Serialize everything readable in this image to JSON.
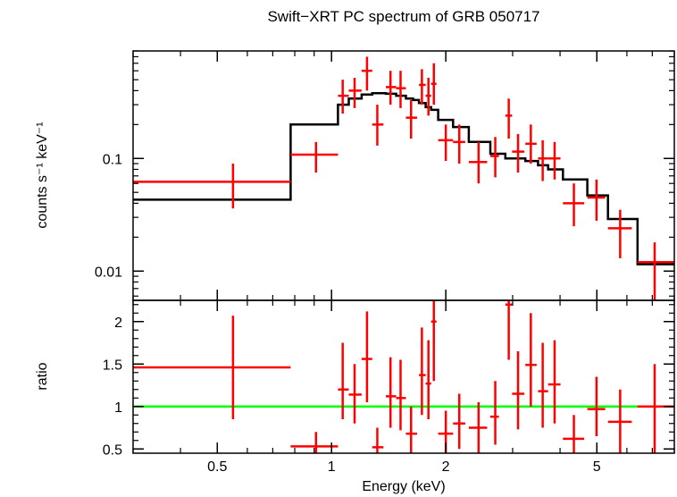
{
  "chart_data": {
    "type": "scatter",
    "title": "Swift−XRT PC spectrum of GRB 050717",
    "xlabel": "Energy (keV)",
    "x_scale": "log",
    "xlim": [
      0.3,
      8.0
    ],
    "x_ticks": [
      "0.5",
      "1",
      "2",
      "5"
    ],
    "x_tick_values": [
      0.5,
      1,
      2,
      5
    ],
    "top_panel": {
      "ylabel": "counts s⁻¹ keV⁻¹",
      "y_scale": "log",
      "ylim": [
        0.0055,
        0.9
      ],
      "y_ticks": [
        "0.1",
        "0.01"
      ],
      "y_tick_values": [
        0.1,
        0.01
      ],
      "series": [
        {
          "color": "#ff0000",
          "points": [
            {
              "x": 0.55,
              "xlo": 0.3,
              "xhi": 0.78,
              "y": 0.062,
              "ylo": 0.036,
              "yhi": 0.09
            },
            {
              "x": 0.91,
              "xlo": 0.78,
              "xhi": 1.04,
              "y": 0.108,
              "ylo": 0.075,
              "yhi": 0.14
            },
            {
              "x": 1.07,
              "xlo": 1.04,
              "xhi": 1.11,
              "y": 0.36,
              "ylo": 0.25,
              "yhi": 0.5
            },
            {
              "x": 1.15,
              "xlo": 1.11,
              "xhi": 1.2,
              "y": 0.4,
              "ylo": 0.28,
              "yhi": 0.52
            },
            {
              "x": 1.24,
              "xlo": 1.2,
              "xhi": 1.28,
              "y": 0.6,
              "ylo": 0.4,
              "yhi": 0.8
            },
            {
              "x": 1.32,
              "xlo": 1.28,
              "xhi": 1.37,
              "y": 0.2,
              "ylo": 0.13,
              "yhi": 0.3
            },
            {
              "x": 1.43,
              "xlo": 1.39,
              "xhi": 1.48,
              "y": 0.43,
              "ylo": 0.3,
              "yhi": 0.6
            },
            {
              "x": 1.52,
              "xlo": 1.48,
              "xhi": 1.57,
              "y": 0.42,
              "ylo": 0.28,
              "yhi": 0.6
            },
            {
              "x": 1.62,
              "xlo": 1.57,
              "xhi": 1.68,
              "y": 0.23,
              "ylo": 0.15,
              "yhi": 0.33
            },
            {
              "x": 1.73,
              "xlo": 1.7,
              "xhi": 1.77,
              "y": 0.45,
              "ylo": 0.3,
              "yhi": 0.62
            },
            {
              "x": 1.8,
              "xlo": 1.77,
              "xhi": 1.83,
              "y": 0.36,
              "ylo": 0.24,
              "yhi": 0.52
            },
            {
              "x": 1.86,
              "xlo": 1.83,
              "xhi": 1.89,
              "y": 0.46,
              "ylo": 0.3,
              "yhi": 0.7
            },
            {
              "x": 2.0,
              "xlo": 1.91,
              "xhi": 2.09,
              "y": 0.145,
              "ylo": 0.095,
              "yhi": 0.2
            },
            {
              "x": 2.17,
              "xlo": 2.09,
              "xhi": 2.25,
              "y": 0.14,
              "ylo": 0.09,
              "yhi": 0.2
            },
            {
              "x": 2.44,
              "xlo": 2.3,
              "xhi": 2.57,
              "y": 0.093,
              "ylo": 0.06,
              "yhi": 0.14
            },
            {
              "x": 2.7,
              "xlo": 2.62,
              "xhi": 2.76,
              "y": 0.105,
              "ylo": 0.068,
              "yhi": 0.155
            },
            {
              "x": 2.93,
              "xlo": 2.87,
              "xhi": 2.99,
              "y": 0.24,
              "ylo": 0.15,
              "yhi": 0.34
            },
            {
              "x": 3.1,
              "xlo": 2.99,
              "xhi": 3.22,
              "y": 0.115,
              "ylo": 0.075,
              "yhi": 0.165
            },
            {
              "x": 3.35,
              "xlo": 3.24,
              "xhi": 3.47,
              "y": 0.135,
              "ylo": 0.09,
              "yhi": 0.2
            },
            {
              "x": 3.6,
              "xlo": 3.5,
              "xhi": 3.72,
              "y": 0.1,
              "ylo": 0.063,
              "yhi": 0.145
            },
            {
              "x": 3.87,
              "xlo": 3.72,
              "xhi": 4.01,
              "y": 0.1,
              "ylo": 0.065,
              "yhi": 0.14
            },
            {
              "x": 4.35,
              "xlo": 4.07,
              "xhi": 4.63,
              "y": 0.04,
              "ylo": 0.025,
              "yhi": 0.06
            },
            {
              "x": 4.99,
              "xlo": 4.72,
              "xhi": 5.26,
              "y": 0.045,
              "ylo": 0.028,
              "yhi": 0.065
            },
            {
              "x": 5.76,
              "xlo": 5.35,
              "xhi": 6.18,
              "y": 0.024,
              "ylo": 0.013,
              "yhi": 0.035
            },
            {
              "x": 7.1,
              "xlo": 6.4,
              "xhi": 8.0,
              "y": 0.012,
              "ylo": 0.0055,
              "yhi": 0.018
            }
          ]
        }
      ],
      "model": {
        "color": "#000000",
        "steps": [
          {
            "xlo": 0.3,
            "xhi": 0.78,
            "y": 0.043
          },
          {
            "xlo": 0.78,
            "xhi": 1.04,
            "y": 0.2
          },
          {
            "xlo": 1.04,
            "xhi": 1.11,
            "y": 0.3
          },
          {
            "xlo": 1.11,
            "xhi": 1.2,
            "y": 0.34
          },
          {
            "xlo": 1.2,
            "xhi": 1.28,
            "y": 0.37
          },
          {
            "xlo": 1.28,
            "xhi": 1.39,
            "y": 0.38
          },
          {
            "xlo": 1.39,
            "xhi": 1.48,
            "y": 0.375
          },
          {
            "xlo": 1.48,
            "xhi": 1.57,
            "y": 0.36
          },
          {
            "xlo": 1.57,
            "xhi": 1.64,
            "y": 0.34
          },
          {
            "xlo": 1.64,
            "xhi": 1.7,
            "y": 0.33
          },
          {
            "xlo": 1.7,
            "xhi": 1.77,
            "y": 0.31
          },
          {
            "xlo": 1.77,
            "xhi": 1.83,
            "y": 0.285
          },
          {
            "xlo": 1.83,
            "xhi": 1.91,
            "y": 0.27
          },
          {
            "xlo": 1.91,
            "xhi": 2.09,
            "y": 0.22
          },
          {
            "xlo": 2.09,
            "xhi": 2.3,
            "y": 0.19
          },
          {
            "xlo": 2.3,
            "xhi": 2.62,
            "y": 0.14
          },
          {
            "xlo": 2.62,
            "xhi": 2.87,
            "y": 0.11
          },
          {
            "xlo": 2.87,
            "xhi": 3.0,
            "y": 0.1
          },
          {
            "xlo": 3.0,
            "xhi": 3.24,
            "y": 0.1
          },
          {
            "xlo": 3.24,
            "xhi": 3.5,
            "y": 0.095
          },
          {
            "xlo": 3.5,
            "xhi": 3.72,
            "y": 0.087
          },
          {
            "xlo": 3.72,
            "xhi": 4.07,
            "y": 0.08
          },
          {
            "xlo": 4.07,
            "xhi": 4.72,
            "y": 0.065
          },
          {
            "xlo": 4.72,
            "xhi": 5.35,
            "y": 0.047
          },
          {
            "xlo": 5.35,
            "xhi": 6.4,
            "y": 0.029
          },
          {
            "xlo": 6.4,
            "xhi": 8.0,
            "y": 0.0115
          }
        ]
      }
    },
    "bottom_panel": {
      "ylabel": "ratio",
      "y_scale": "linear",
      "ylim": [
        0.45,
        2.25
      ],
      "y_ticks": [
        "0.5",
        "1",
        "1.5",
        "2"
      ],
      "y_tick_values": [
        0.5,
        1,
        1.5,
        2
      ],
      "reference_line": {
        "y": 1,
        "color": "#00ff00"
      },
      "series": [
        {
          "color": "#ff0000",
          "points": [
            {
              "x": 0.55,
              "xlo": 0.3,
              "xhi": 0.78,
              "y": 1.46,
              "ylo": 0.85,
              "yhi": 2.07
            },
            {
              "x": 0.91,
              "xlo": 0.78,
              "xhi": 1.04,
              "y": 0.53,
              "ylo": 0.45,
              "yhi": 0.7
            },
            {
              "x": 1.07,
              "xlo": 1.04,
              "xhi": 1.11,
              "y": 1.2,
              "ylo": 0.85,
              "yhi": 1.75
            },
            {
              "x": 1.15,
              "xlo": 1.11,
              "xhi": 1.2,
              "y": 1.14,
              "ylo": 0.8,
              "yhi": 1.5
            },
            {
              "x": 1.24,
              "xlo": 1.2,
              "xhi": 1.28,
              "y": 1.56,
              "ylo": 1.05,
              "yhi": 2.12
            },
            {
              "x": 1.32,
              "xlo": 1.28,
              "xhi": 1.37,
              "y": 0.52,
              "ylo": 0.45,
              "yhi": 0.75
            },
            {
              "x": 1.43,
              "xlo": 1.39,
              "xhi": 1.48,
              "y": 1.12,
              "ylo": 0.75,
              "yhi": 1.58
            },
            {
              "x": 1.52,
              "xlo": 1.48,
              "xhi": 1.57,
              "y": 1.1,
              "ylo": 0.72,
              "yhi": 1.55
            },
            {
              "x": 1.62,
              "xlo": 1.57,
              "xhi": 1.68,
              "y": 0.68,
              "ylo": 0.45,
              "yhi": 1.0
            },
            {
              "x": 1.73,
              "xlo": 1.7,
              "xhi": 1.77,
              "y": 1.37,
              "ylo": 0.9,
              "yhi": 1.93
            },
            {
              "x": 1.8,
              "xlo": 1.77,
              "xhi": 1.83,
              "y": 1.27,
              "ylo": 0.85,
              "yhi": 1.78
            },
            {
              "x": 1.86,
              "xlo": 1.83,
              "xhi": 1.89,
              "y": 2.0,
              "ylo": 1.3,
              "yhi": 2.25
            },
            {
              "x": 2.0,
              "xlo": 1.91,
              "xhi": 2.09,
              "y": 0.68,
              "ylo": 0.45,
              "yhi": 0.95
            },
            {
              "x": 2.17,
              "xlo": 2.09,
              "xhi": 2.25,
              "y": 0.8,
              "ylo": 0.5,
              "yhi": 1.15
            },
            {
              "x": 2.44,
              "xlo": 2.3,
              "xhi": 2.57,
              "y": 0.75,
              "ylo": 0.45,
              "yhi": 1.05
            },
            {
              "x": 2.7,
              "xlo": 2.62,
              "xhi": 2.76,
              "y": 0.88,
              "ylo": 0.55,
              "yhi": 1.3
            },
            {
              "x": 2.93,
              "xlo": 2.87,
              "xhi": 2.99,
              "y": 2.2,
              "ylo": 1.55,
              "yhi": 2.25
            },
            {
              "x": 3.1,
              "xlo": 2.99,
              "xhi": 3.22,
              "y": 1.15,
              "ylo": 0.73,
              "yhi": 1.65
            },
            {
              "x": 3.35,
              "xlo": 3.24,
              "xhi": 3.47,
              "y": 1.49,
              "ylo": 1.0,
              "yhi": 2.1
            },
            {
              "x": 3.6,
              "xlo": 3.5,
              "xhi": 3.72,
              "y": 1.18,
              "ylo": 0.75,
              "yhi": 1.75
            },
            {
              "x": 3.87,
              "xlo": 3.72,
              "xhi": 4.01,
              "y": 1.26,
              "ylo": 0.8,
              "yhi": 1.78
            },
            {
              "x": 4.35,
              "xlo": 4.07,
              "xhi": 4.63,
              "y": 0.62,
              "ylo": 0.45,
              "yhi": 0.9
            },
            {
              "x": 4.99,
              "xlo": 4.72,
              "xhi": 5.26,
              "y": 0.97,
              "ylo": 0.65,
              "yhi": 1.35
            },
            {
              "x": 5.76,
              "xlo": 5.35,
              "xhi": 6.18,
              "y": 0.82,
              "ylo": 0.45,
              "yhi": 1.2
            },
            {
              "x": 7.1,
              "xlo": 6.4,
              "xhi": 8.0,
              "y": 1.0,
              "ylo": 0.45,
              "yhi": 1.5
            }
          ]
        }
      ]
    }
  }
}
